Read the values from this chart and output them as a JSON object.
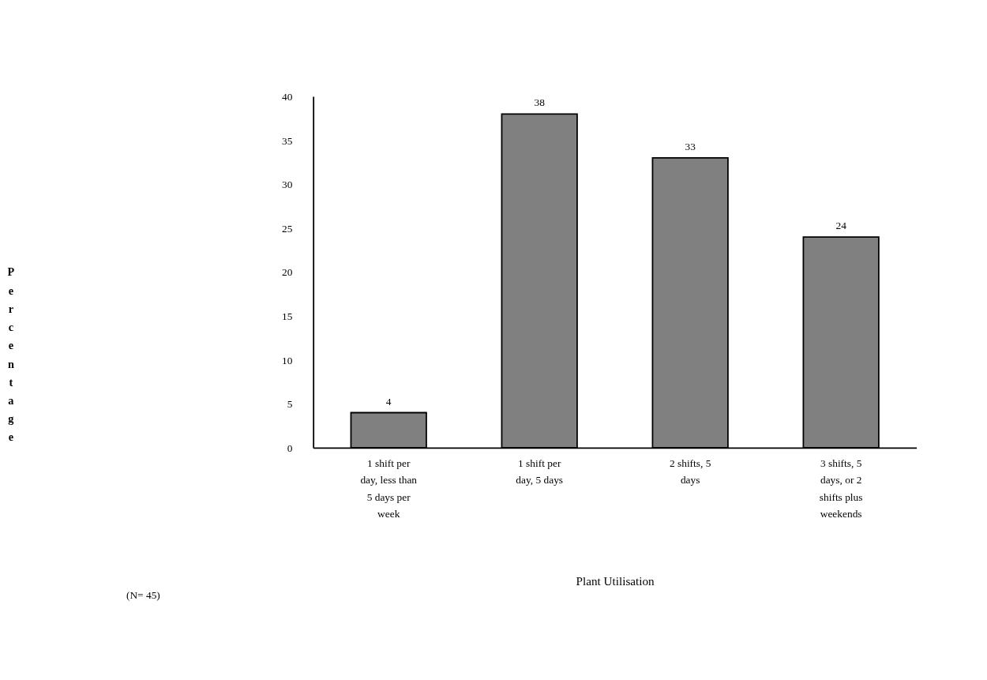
{
  "chart_data": {
    "type": "bar",
    "xlabel": "Plant Utilisation",
    "ylabel": "Percentage",
    "categories": [
      "1 shift per day, less than 5 days per week",
      "1 shift per day, 5 days",
      "2 shifts, 5 days",
      "3 shifts, 5 days, or 2 shifts plus weekends"
    ],
    "values": [
      4,
      38,
      33,
      24
    ],
    "color": "#808080",
    "data_labels": true,
    "ylim": [
      0,
      40
    ],
    "yticks": [
      0,
      5,
      10,
      15,
      20,
      25,
      30,
      35,
      40
    ],
    "grid": false,
    "annotations": [
      "(N= 45)"
    ]
  }
}
